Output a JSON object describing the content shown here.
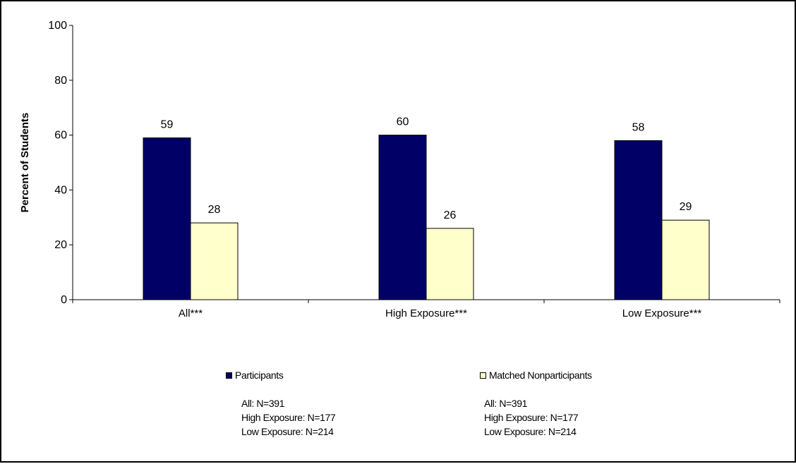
{
  "chart_data": {
    "type": "bar",
    "categories": [
      "All***",
      "High Exposure***",
      "Low  Exposure***"
    ],
    "series": [
      {
        "name": "Participants",
        "values": [
          59,
          60,
          58
        ],
        "color": "#000066"
      },
      {
        "name": "Matched Nonparticipants",
        "values": [
          28,
          26,
          29
        ],
        "color": "#FFFFCC"
      }
    ],
    "data_labels": [
      [
        "59",
        "60",
        "58"
      ],
      [
        "28",
        "26",
        "29"
      ]
    ],
    "xlabel": "",
    "ylabel": "Percent of Students",
    "ylim": [
      0,
      100
    ],
    "yticks": [
      0,
      20,
      40,
      60,
      80,
      100
    ],
    "grid": false,
    "legend_position": "bottom"
  },
  "legend": {
    "participants": {
      "label": "Participants",
      "notes": [
        "All: N=391",
        "High Exposure: N=177",
        "Low Exposure: N=214"
      ]
    },
    "nonparticipants": {
      "label": "Matched Nonparticipants",
      "notes": [
        "All: N=391",
        "High Exposure: N=177",
        "Low Exposure: N=214"
      ]
    }
  }
}
